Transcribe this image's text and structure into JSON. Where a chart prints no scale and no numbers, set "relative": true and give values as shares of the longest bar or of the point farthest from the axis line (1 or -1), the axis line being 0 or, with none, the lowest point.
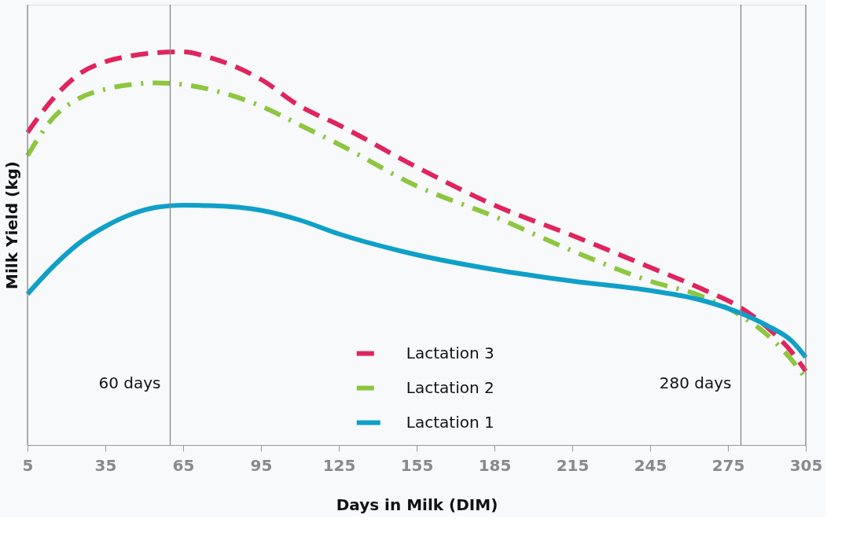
{
  "chart_data": {
    "type": "line",
    "relative": true,
    "xlabel": "Days in Milk (DIM)",
    "ylabel": "Milk Yield (kg)",
    "xlim": [
      5,
      305
    ],
    "xticks": [
      5,
      35,
      65,
      95,
      125,
      155,
      185,
      215,
      245,
      275,
      305
    ],
    "x": [
      5,
      15,
      25,
      35,
      45,
      55,
      65,
      75,
      95,
      110,
      125,
      155,
      185,
      215,
      245,
      265,
      280,
      290,
      300,
      305
    ],
    "series": [
      {
        "name": "Lactation 3",
        "color": "#e0245e",
        "line_style": "dashed",
        "values": [
          0.795,
          0.882,
          0.944,
          0.975,
          0.99,
          0.998,
          1,
          0.986,
          0.93,
          0.862,
          0.814,
          0.707,
          0.61,
          0.533,
          0.452,
          0.397,
          0.349,
          0.3,
          0.233,
          0.188
        ]
      },
      {
        "name": "Lactation 2",
        "color": "#8dc63f",
        "line_style": "dashdot",
        "values": [
          0.736,
          0.833,
          0.882,
          0.905,
          0.917,
          0.921,
          0.917,
          0.905,
          0.862,
          0.814,
          0.765,
          0.659,
          0.581,
          0.494,
          0.417,
          0.378,
          0.329,
          0.281,
          0.213,
          0.169
        ]
      },
      {
        "name": "Lactation 1",
        "color": "#0fa0c8",
        "line_style": "solid",
        "values": [
          0.384,
          0.455,
          0.514,
          0.556,
          0.587,
          0.605,
          0.61,
          0.609,
          0.597,
          0.572,
          0.537,
          0.484,
          0.446,
          0.417,
          0.393,
          0.368,
          0.335,
          0.304,
          0.262,
          0.223
        ]
      }
    ],
    "ref_lines": [
      {
        "axis": "x",
        "value": 5,
        "color": "#888888"
      },
      {
        "axis": "x",
        "value": 60,
        "label": "60 days",
        "color": "#888888"
      },
      {
        "axis": "x",
        "value": 280,
        "label": "280 days",
        "color": "#888888"
      },
      {
        "axis": "x",
        "value": 305,
        "color": "#888888"
      }
    ],
    "legend": "bottom",
    "grid": false,
    "marker": "none"
  }
}
